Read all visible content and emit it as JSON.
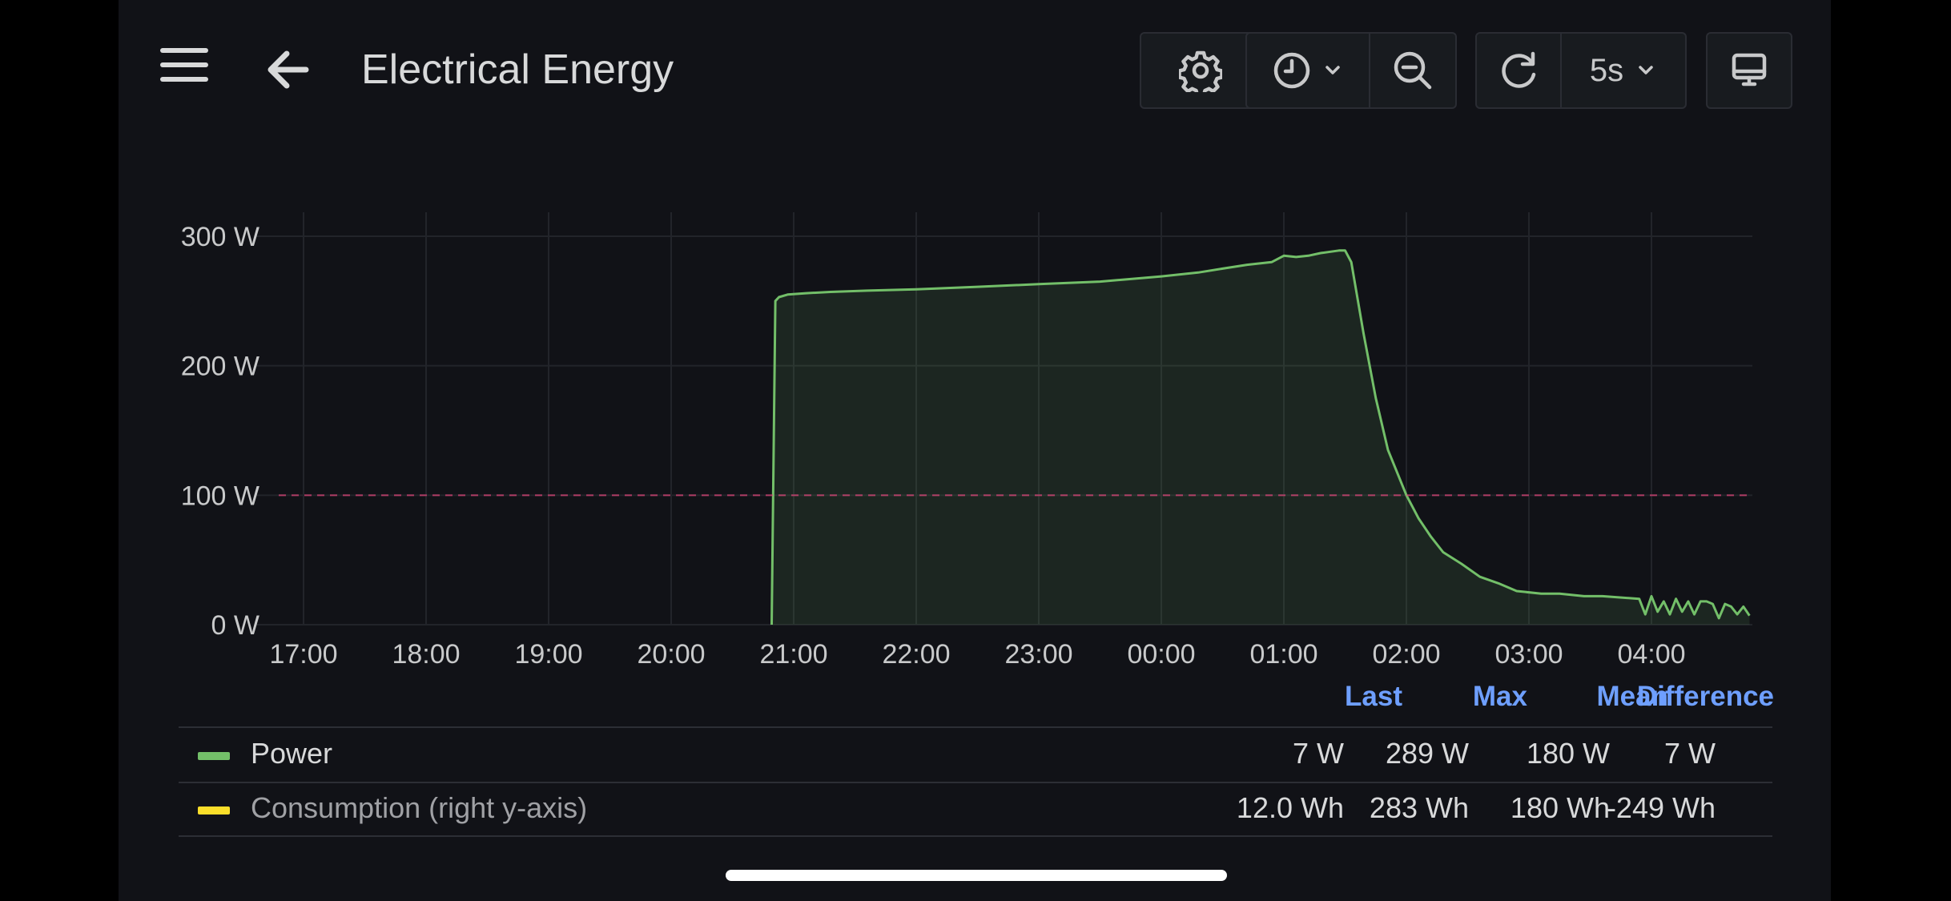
{
  "header": {
    "title": "Electrical Energy",
    "refresh_interval": "5s"
  },
  "colors": {
    "background": "#111217",
    "power_line": "#73bf69",
    "consumption": "#fade2a",
    "threshold": "#e0457b",
    "legend_header": "#6e9fff"
  },
  "icons": [
    "menu-icon",
    "back-arrow-icon",
    "gear-icon",
    "clock-icon",
    "chevron-down-icon",
    "zoom-out-icon",
    "refresh-icon",
    "tv-icon"
  ],
  "chart_data": {
    "type": "area",
    "y_ticks": [
      "300 W",
      "200 W",
      "100 W",
      "0 W"
    ],
    "y_tick_values": [
      300,
      200,
      100,
      0
    ],
    "ylim": [
      0,
      300
    ],
    "x_ticks": [
      "17:00",
      "18:00",
      "19:00",
      "20:00",
      "21:00",
      "22:00",
      "23:00",
      "00:00",
      "01:00",
      "02:00",
      "03:00",
      "04:00"
    ],
    "threshold": 100,
    "grid": true,
    "series": [
      {
        "name": "Power",
        "x_hours": [
          0,
          3.82,
          3.85,
          3.88,
          3.95,
          4.1,
          4.3,
          4.6,
          5.0,
          5.5,
          6.0,
          6.5,
          7.0,
          7.3,
          7.5,
          7.7,
          7.9,
          8.0,
          8.1,
          8.2,
          8.3,
          8.45,
          8.5,
          8.55,
          8.65,
          8.75,
          8.85,
          9.0,
          9.1,
          9.2,
          9.3,
          9.45,
          9.6,
          9.75,
          9.9,
          10.1,
          10.25,
          10.45,
          10.6,
          10.9,
          10.95,
          11.0,
          11.05,
          11.1,
          11.15,
          11.2,
          11.25,
          11.3,
          11.35,
          11.4,
          11.45,
          11.5,
          11.55,
          11.6,
          11.65,
          11.7,
          11.75,
          11.8
        ],
        "y_watts": [
          0,
          0,
          250,
          253,
          255,
          256,
          257,
          258,
          259,
          261,
          263,
          265,
          269,
          272,
          275,
          278,
          280,
          285,
          284,
          285,
          287,
          289,
          289,
          280,
          225,
          175,
          135,
          100,
          82,
          68,
          56,
          47,
          37,
          32,
          26,
          24,
          24,
          22,
          22,
          20,
          8,
          22,
          10,
          18,
          8,
          20,
          10,
          18,
          8,
          18,
          18,
          16,
          5,
          16,
          14,
          8,
          14,
          7
        ]
      },
      {
        "name": "Consumption (right y-axis)"
      }
    ]
  },
  "legend": {
    "headers": [
      "Last",
      "Max",
      "Mean",
      "Difference"
    ],
    "rows": [
      {
        "name": "Power",
        "values": [
          "7 W",
          "289 W",
          "180 W",
          "7 W"
        ]
      },
      {
        "name": "Consumption (right y-axis)",
        "values": [
          "12.0 Wh",
          "283 Wh",
          "180 Wh",
          "-249 Wh"
        ]
      }
    ]
  }
}
